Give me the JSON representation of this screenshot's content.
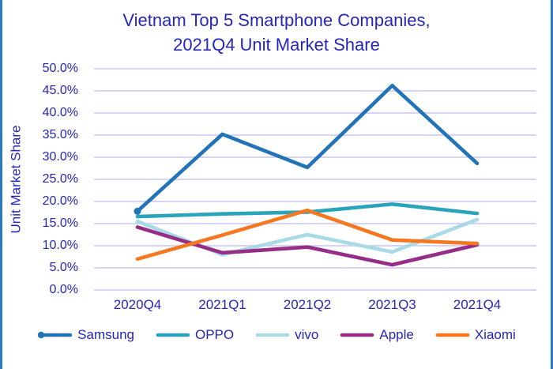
{
  "title": {
    "line1": "Vietnam Top 5 Smartphone Companies,",
    "line2": "2021Q4 Unit Market Share"
  },
  "chart_data": {
    "type": "line",
    "title": "Vietnam Top 5 Smartphone Companies, 2021Q4 Unit Market Share",
    "xlabel": "",
    "ylabel": "Unit Market Share",
    "ylim": [
      0,
      50
    ],
    "y_tick_step": 5,
    "y_ticks_top_to_bottom": [
      "50.0%",
      "45.0%",
      "40.0%",
      "35.0%",
      "30.0%",
      "25.0%",
      "20.0%",
      "15.0%",
      "10.0%",
      "5.0%",
      "0.0%"
    ],
    "grid": "horizontal",
    "legend_position": "bottom",
    "categories": [
      "2020Q4",
      "2021Q1",
      "2021Q2",
      "2021Q3",
      "2021Q4"
    ],
    "series": [
      {
        "name": "OPPO",
        "color": "#29a4bb",
        "values": [
          16.6,
          17.2,
          17.6,
          19.4,
          17.3
        ],
        "start_dot": false
      },
      {
        "name": "vivo",
        "color": "#a9dae5",
        "values": [
          15.5,
          8.0,
          12.5,
          8.6,
          15.9
        ],
        "start_dot": false
      },
      {
        "name": "Apple",
        "color": "#962d87",
        "values": [
          14.2,
          8.4,
          9.7,
          5.7,
          10.2
        ],
        "start_dot": false
      },
      {
        "name": "Xiaomi",
        "color": "#f57820",
        "values": [
          7.0,
          12.4,
          18.0,
          11.3,
          10.5
        ],
        "start_dot": false
      },
      {
        "name": "Samsung",
        "color": "#2273b8",
        "values": [
          17.8,
          35.2,
          27.7,
          46.2,
          28.6
        ],
        "start_dot": true
      }
    ],
    "legend_order": [
      "Samsung",
      "OPPO",
      "vivo",
      "Apple",
      "Xiaomi"
    ]
  },
  "colors": {
    "text": "#2525be",
    "gridline": "#c7c5f1",
    "page_border": "#2979be",
    "background": "#ffffff"
  }
}
